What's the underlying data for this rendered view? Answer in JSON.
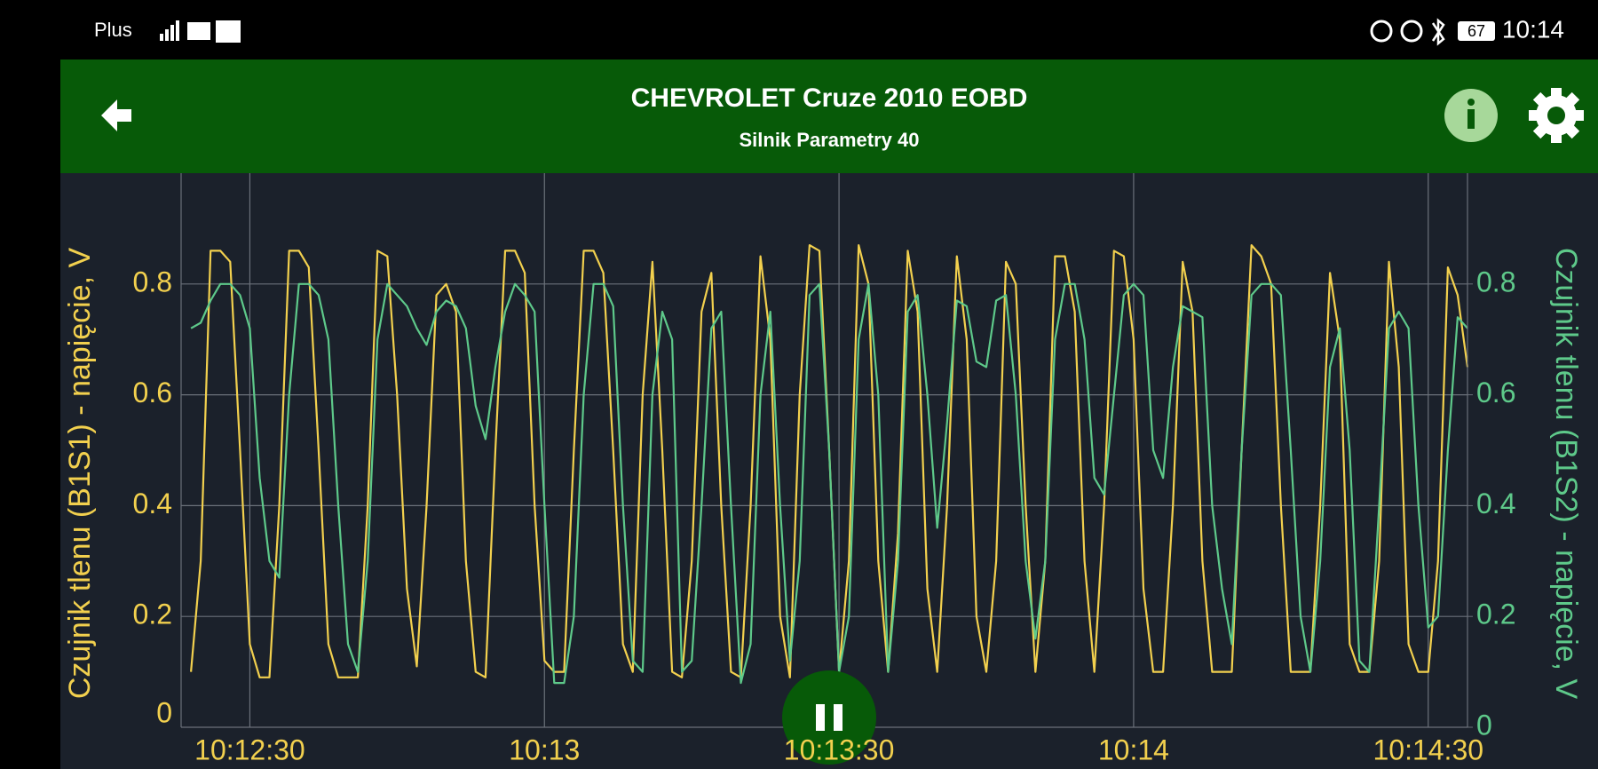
{
  "status_bar": {
    "carrier": "Plus",
    "battery": "67",
    "time": "10:14"
  },
  "header": {
    "title": "CHEVROLET Cruze 2010 EOBD",
    "subtitle": "Silnik Parametry 40"
  },
  "chart_data": {
    "type": "line",
    "ylabel": "Czujnik tlenu (B1S1) - napięcie, V",
    "y2label": "Czujnik tlenu (B1S2) - napięcie, V",
    "x": [
      "10:12:24",
      "10:12:25",
      "10:12:26",
      "10:12:27",
      "10:12:28",
      "10:12:29",
      "10:12:30",
      "10:12:31",
      "10:12:32",
      "10:12:33",
      "10:12:34",
      "10:12:35",
      "10:12:36",
      "10:12:37",
      "10:12:38",
      "10:12:39",
      "10:12:40",
      "10:12:41",
      "10:12:42",
      "10:12:43",
      "10:12:44",
      "10:12:45",
      "10:12:46",
      "10:12:47",
      "10:12:48",
      "10:12:49",
      "10:12:50",
      "10:12:51",
      "10:12:52",
      "10:12:53",
      "10:12:54",
      "10:12:55",
      "10:12:56",
      "10:12:57",
      "10:12:58",
      "10:12:59",
      "10:13:00",
      "10:13:01",
      "10:13:02",
      "10:13:03",
      "10:13:04",
      "10:13:05",
      "10:13:06",
      "10:13:07",
      "10:13:08",
      "10:13:09",
      "10:13:10",
      "10:13:11",
      "10:13:12",
      "10:13:13",
      "10:13:14",
      "10:13:15",
      "10:13:16",
      "10:13:17",
      "10:13:18",
      "10:13:19",
      "10:13:20",
      "10:13:21",
      "10:13:22",
      "10:13:23",
      "10:13:24",
      "10:13:25",
      "10:13:26",
      "10:13:27",
      "10:13:28",
      "10:13:29",
      "10:13:30",
      "10:13:31",
      "10:13:32",
      "10:13:33",
      "10:13:34",
      "10:13:35",
      "10:13:36",
      "10:13:37",
      "10:13:38",
      "10:13:39",
      "10:13:40",
      "10:13:41",
      "10:13:42",
      "10:13:43",
      "10:13:44",
      "10:13:45",
      "10:13:46",
      "10:13:47",
      "10:13:48",
      "10:13:49",
      "10:13:50",
      "10:13:51",
      "10:13:52",
      "10:13:53",
      "10:13:54",
      "10:13:55",
      "10:13:56",
      "10:13:57",
      "10:13:58",
      "10:13:59",
      "10:14:00",
      "10:14:01",
      "10:14:02",
      "10:14:03",
      "10:14:04",
      "10:14:05",
      "10:14:06",
      "10:14:07",
      "10:14:08",
      "10:14:09",
      "10:14:10",
      "10:14:11",
      "10:14:12",
      "10:14:13",
      "10:14:14",
      "10:14:15",
      "10:14:16",
      "10:14:17",
      "10:14:18",
      "10:14:19",
      "10:14:20",
      "10:14:21",
      "10:14:22",
      "10:14:23",
      "10:14:24",
      "10:14:25",
      "10:14:26",
      "10:14:27",
      "10:14:28",
      "10:14:29",
      "10:14:30",
      "10:14:31",
      "10:14:32",
      "10:14:33",
      "10:14:34"
    ],
    "series": [
      {
        "color": "#f2d04e",
        "values": [
          0.1,
          0.3,
          0.86,
          0.86,
          0.84,
          0.5,
          0.15,
          0.09,
          0.09,
          0.4,
          0.86,
          0.86,
          0.83,
          0.5,
          0.15,
          0.09,
          0.09,
          0.09,
          0.4,
          0.86,
          0.85,
          0.6,
          0.25,
          0.11,
          0.4,
          0.78,
          0.8,
          0.75,
          0.3,
          0.1,
          0.09,
          0.5,
          0.86,
          0.86,
          0.82,
          0.4,
          0.12,
          0.1,
          0.1,
          0.5,
          0.86,
          0.86,
          0.82,
          0.5,
          0.15,
          0.1,
          0.6,
          0.84,
          0.5,
          0.1,
          0.09,
          0.3,
          0.75,
          0.82,
          0.4,
          0.1,
          0.09,
          0.4,
          0.85,
          0.7,
          0.2,
          0.09,
          0.6,
          0.87,
          0.86,
          0.5,
          0.1,
          0.3,
          0.87,
          0.8,
          0.3,
          0.1,
          0.35,
          0.86,
          0.75,
          0.25,
          0.1,
          0.4,
          0.85,
          0.7,
          0.2,
          0.1,
          0.3,
          0.84,
          0.8,
          0.4,
          0.1,
          0.3,
          0.85,
          0.85,
          0.75,
          0.3,
          0.1,
          0.4,
          0.86,
          0.85,
          0.7,
          0.25,
          0.1,
          0.1,
          0.4,
          0.84,
          0.75,
          0.3,
          0.1,
          0.1,
          0.1,
          0.5,
          0.87,
          0.85,
          0.8,
          0.4,
          0.1,
          0.1,
          0.1,
          0.4,
          0.82,
          0.7,
          0.15,
          0.1,
          0.1,
          0.3,
          0.84,
          0.65,
          0.15,
          0.1,
          0.1,
          0.3,
          0.83,
          0.78,
          0.65
        ]
      },
      {
        "color": "#5ec98a",
        "axis": "y2",
        "values": [
          0.72,
          0.73,
          0.77,
          0.8,
          0.8,
          0.78,
          0.72,
          0.45,
          0.3,
          0.27,
          0.6,
          0.8,
          0.8,
          0.78,
          0.7,
          0.4,
          0.15,
          0.1,
          0.3,
          0.7,
          0.8,
          0.78,
          0.76,
          0.72,
          0.69,
          0.75,
          0.77,
          0.76,
          0.72,
          0.58,
          0.52,
          0.65,
          0.75,
          0.8,
          0.78,
          0.75,
          0.4,
          0.08,
          0.08,
          0.2,
          0.6,
          0.8,
          0.8,
          0.76,
          0.4,
          0.12,
          0.1,
          0.6,
          0.75,
          0.7,
          0.1,
          0.12,
          0.4,
          0.72,
          0.75,
          0.4,
          0.08,
          0.15,
          0.6,
          0.75,
          0.4,
          0.12,
          0.3,
          0.78,
          0.8,
          0.5,
          0.1,
          0.2,
          0.7,
          0.8,
          0.6,
          0.1,
          0.3,
          0.75,
          0.78,
          0.6,
          0.36,
          0.55,
          0.77,
          0.76,
          0.66,
          0.65,
          0.77,
          0.78,
          0.6,
          0.3,
          0.16,
          0.3,
          0.7,
          0.8,
          0.8,
          0.7,
          0.45,
          0.42,
          0.6,
          0.78,
          0.8,
          0.78,
          0.5,
          0.45,
          0.65,
          0.76,
          0.75,
          0.74,
          0.4,
          0.25,
          0.15,
          0.5,
          0.78,
          0.8,
          0.8,
          0.78,
          0.5,
          0.2,
          0.1,
          0.3,
          0.65,
          0.72,
          0.5,
          0.12,
          0.1,
          0.4,
          0.72,
          0.75,
          0.72,
          0.4,
          0.18,
          0.2,
          0.5,
          0.74,
          0.72
        ]
      }
    ],
    "xlim": [
      "10:12:23",
      "10:14:34"
    ],
    "xticks": [
      "10:12:30",
      {
        "value": "10:13:00",
        "label": "10:13"
      },
      "10:13:30",
      {
        "value": "10:14:00",
        "label": "10:14"
      },
      "10:14:30"
    ],
    "ylim": [
      0,
      1.0
    ],
    "yticks": [
      0,
      0.2,
      0.4,
      0.6,
      0.8
    ],
    "y2lim": [
      0,
      1.0
    ],
    "y2ticks": [
      0,
      0.2,
      0.4,
      0.6,
      0.8
    ],
    "grid": true
  }
}
